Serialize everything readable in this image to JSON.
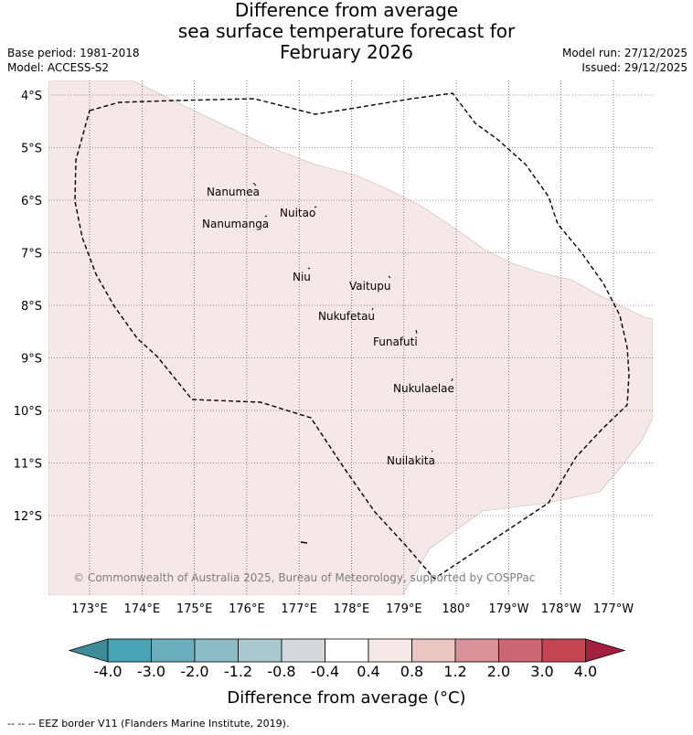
{
  "title": {
    "line1": "Difference from average",
    "line2": "sea surface temperature forecast for",
    "line3": "February 2026"
  },
  "meta": {
    "base_period": "Base period: 1981-2018",
    "model": "Model: ACCESS-S2",
    "model_run": "Model run: 27/12/2025",
    "issued": "Issued: 29/12/2025"
  },
  "map": {
    "lon_labels": [
      "173°E",
      "174°E",
      "175°E",
      "176°E",
      "177°E",
      "178°E",
      "179°E",
      "180°",
      "179°W",
      "178°W",
      "177°W"
    ],
    "lat_labels": [
      "4°S",
      "5°S",
      "6°S",
      "7°S",
      "8°S",
      "9°S",
      "10°S",
      "11°S",
      "12°S"
    ],
    "islands": [
      "Nanumea",
      "Nuitao",
      "Nanumanga",
      "Niu",
      "Vaitupu",
      "Nukufetau",
      "Funafuti",
      "Nukulaelae",
      "Nuilakita"
    ],
    "copyright": "© Commonwealth of Australia 2025, Bureau of Meteorology, supported by COSPPac",
    "anomaly_fill_color": "#f5e8e6",
    "eez_line_color": "#000000"
  },
  "colorbar": {
    "tick_labels": [
      "-4.0",
      "-3.0",
      "-2.0",
      "-1.2",
      "-0.8",
      "-0.4",
      "0.4",
      "0.8",
      "1.2",
      "2.0",
      "3.0",
      "4.0"
    ],
    "colors": [
      "#3e8c95",
      "#48a3b4",
      "#6aadbd",
      "#8bbcc6",
      "#a9c9ce",
      "#d4d9db",
      "#ffffff",
      "#f5e8e6",
      "#eac7c3",
      "#d9919a",
      "#cc6670",
      "#c44452",
      "#a5203f"
    ],
    "label": "Difference from average (°C)"
  },
  "footer": "--  --  -- EEZ border V11 (Flanders Marine Institute, 2019)."
}
